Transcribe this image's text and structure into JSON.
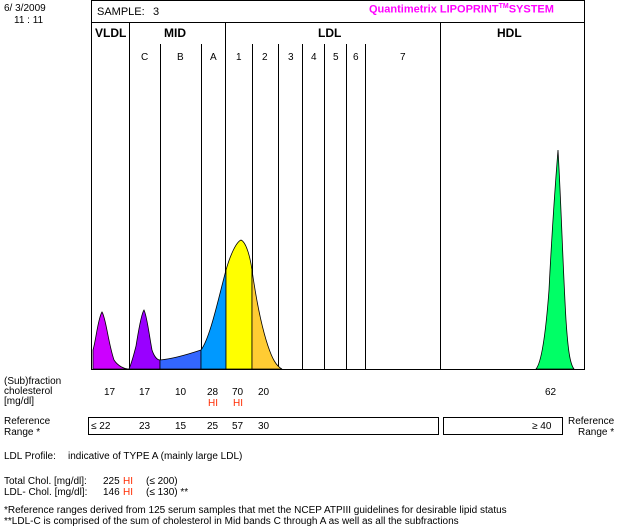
{
  "header": {
    "date": "6/ 3/2009",
    "time": "11 : 11",
    "sample_label": "SAMPLE:",
    "sample_number": "3",
    "brand_prefix": "Quantimetrix LIPOPRINT",
    "brand_tm": "TM",
    "brand_suffix": "SYSTEM",
    "brand_color": "#ff00ff"
  },
  "groups": {
    "vldl": "VLDL",
    "mid": "MID",
    "ldl": "LDL",
    "hdl": "HDL"
  },
  "bands": [
    "C",
    "B",
    "A",
    "1",
    "2",
    "3",
    "4",
    "5",
    "6",
    "7"
  ],
  "colors": {
    "vldl": "#cc00ff",
    "mid_c": "#9900ff",
    "mid_b": "#3366ff",
    "mid_a": "#0099ff",
    "ldl1": "#ffff00",
    "ldl2": "#ffcc33",
    "hdl": "#00ff66",
    "hi": "#ff2a00"
  },
  "labels": {
    "subfraction_1": "(Sub)fraction",
    "subfraction_2": "cholesterol",
    "subfraction_3": "[mg/dl]",
    "reference": "Reference",
    "range": "Range *",
    "range_right": "Range *"
  },
  "values": {
    "vldl": "17",
    "mid_c": "17",
    "mid_b": "10",
    "mid_a": "28",
    "ldl1": "70",
    "ldl2": "20",
    "hdl": "62",
    "flag_a": "HI",
    "flag_1": "HI"
  },
  "reference_values": {
    "vldl": "≤ 22",
    "mid_c": "23",
    "mid_b": "15",
    "mid_a": "25",
    "ldl1": "57",
    "ldl2": "30",
    "hdl": "≥ 40"
  },
  "profile": {
    "label": "LDL Profile:",
    "value": "indicative of TYPE A  (mainly large LDL)"
  },
  "totals": {
    "total_label": "Total Chol. [mg/dl]:",
    "total_value": "225",
    "total_flag": "HI",
    "total_ref": "(≤ 200)",
    "ldl_label": "LDL- Chol. [mg/dl]:",
    "ldl_value": "146",
    "ldl_flag": "HI",
    "ldl_ref": "(≤ 130) **"
  },
  "footnotes": {
    "note1": "*Reference ranges derived from 125 serum samples that met the NCEP ATPIII guidelines for desirable lipid status",
    "note2": "**LDL-C is comprised of the sum of cholesterol in Mid bands C through A as well as all the subfractions"
  }
}
